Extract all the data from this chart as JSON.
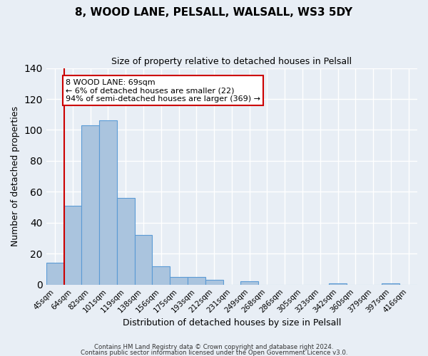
{
  "title": "8, WOOD LANE, PELSALL, WALSALL, WS3 5DY",
  "subtitle": "Size of property relative to detached houses in Pelsall",
  "xlabel": "Distribution of detached houses by size in Pelsall",
  "ylabel": "Number of detached properties",
  "bar_labels": [
    "45sqm",
    "64sqm",
    "82sqm",
    "101sqm",
    "119sqm",
    "138sqm",
    "156sqm",
    "175sqm",
    "193sqm",
    "212sqm",
    "231sqm",
    "249sqm",
    "268sqm",
    "286sqm",
    "305sqm",
    "323sqm",
    "342sqm",
    "360sqm",
    "379sqm",
    "397sqm",
    "416sqm"
  ],
  "bar_values": [
    14,
    51,
    103,
    106,
    56,
    32,
    12,
    5,
    5,
    3,
    0,
    2,
    0,
    0,
    0,
    0,
    1,
    0,
    0,
    1,
    0
  ],
  "bar_color": "#aac4de",
  "bar_edge_color": "#5b9bd5",
  "vline_x": 0.5,
  "vline_color": "#cc0000",
  "annotation_text": "8 WOOD LANE: 69sqm\n← 6% of detached houses are smaller (22)\n94% of semi-detached houses are larger (369) →",
  "annotation_box_color": "#ffffff",
  "annotation_box_edge": "#cc0000",
  "ylim": [
    0,
    140
  ],
  "yticks": [
    0,
    20,
    40,
    60,
    80,
    100,
    120,
    140
  ],
  "background_color": "#e8eef5",
  "plot_background": "#e8eef5",
  "grid_color": "#ffffff",
  "footer_line1": "Contains HM Land Registry data © Crown copyright and database right 2024.",
  "footer_line2": "Contains public sector information licensed under the Open Government Licence v3.0."
}
